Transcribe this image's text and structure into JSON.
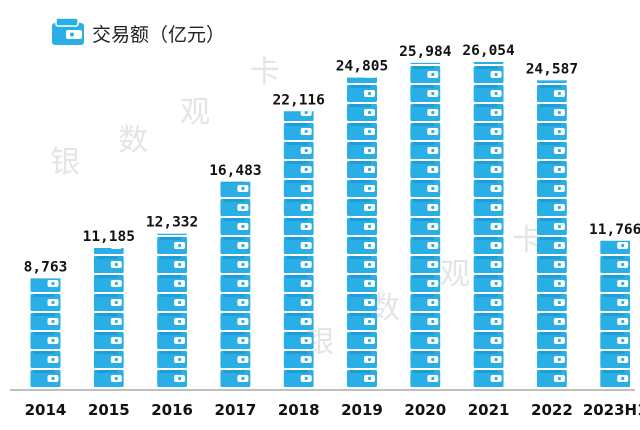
{
  "chart_data": {
    "type": "bar",
    "title": "交易额（亿元）",
    "legend": {
      "label": "交易额（亿元）",
      "icon": "wallet-icon",
      "placement": "top-left"
    },
    "categories": [
      "2014",
      "2015",
      "2016",
      "2017",
      "2018",
      "2019",
      "2020",
      "2021",
      "2022",
      "2023H1"
    ],
    "values": [
      8763,
      11185,
      12332,
      16483,
      22116,
      24805,
      25984,
      26054,
      24587,
      11766
    ],
    "value_labels": [
      "8,763",
      "11,185",
      "12,332",
      "16,483",
      "22,116",
      "24,805",
      "25,984",
      "26,054",
      "24,587",
      "11,766"
    ],
    "ylim": [
      0,
      28000
    ],
    "grid": false,
    "xlabel": "",
    "ylabel": "",
    "bar_style": "stacked wallet icons",
    "bar_color": "#29aee5"
  },
  "watermark": [
    "银",
    "数",
    "观",
    "卡"
  ],
  "colors": {
    "bar": "#29aee5",
    "bar_dark": "#1592c9",
    "axis": "#7f7f7f"
  }
}
